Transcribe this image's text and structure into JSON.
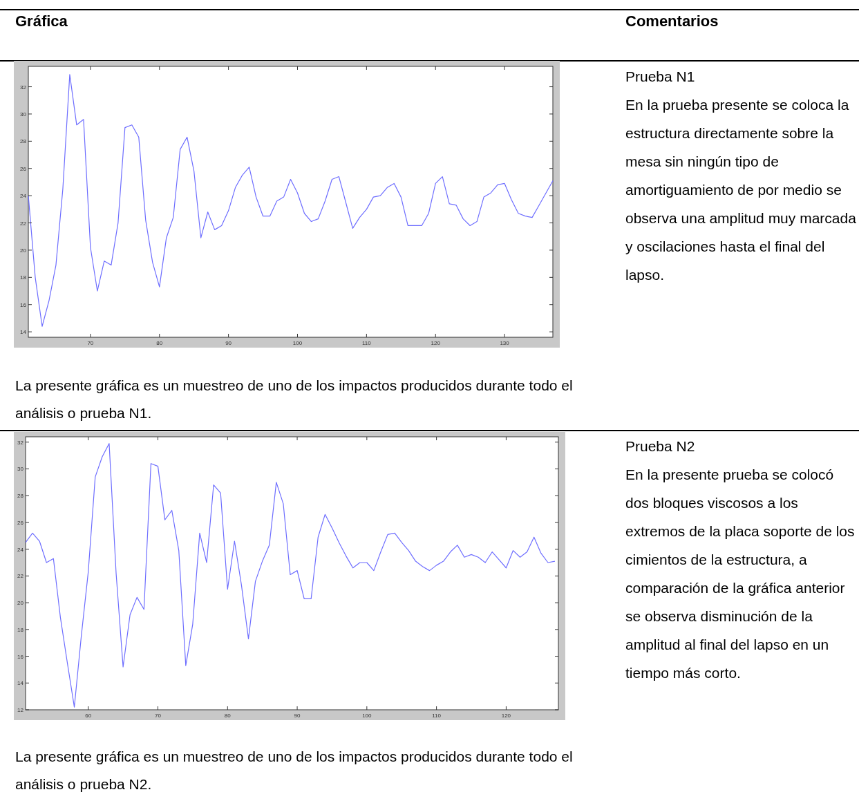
{
  "chart_data": [
    {
      "type": "line",
      "x": [
        61,
        62,
        63,
        64,
        65,
        66,
        67,
        68,
        69,
        70,
        71,
        72,
        73,
        74,
        75,
        76,
        77,
        78,
        79,
        80,
        81,
        82,
        83,
        84,
        85,
        86,
        87,
        88,
        89,
        90,
        91,
        92,
        93,
        94,
        95,
        96,
        97,
        98,
        99,
        100,
        101,
        102,
        103,
        104,
        105,
        106,
        107,
        108,
        109,
        110,
        111,
        112,
        113,
        114,
        115,
        116,
        117,
        118,
        119,
        120,
        121,
        122,
        123,
        124,
        125,
        126,
        127,
        128,
        129,
        130,
        131,
        132,
        133,
        134,
        135,
        136,
        137
      ],
      "series": [
        {
          "color": "#6e6eff",
          "values": [
            24.0,
            18.0,
            14.4,
            16.3,
            18.9,
            24.5,
            32.9,
            29.2,
            29.6,
            20.2,
            17.0,
            19.2,
            18.9,
            22.0,
            29.0,
            29.2,
            28.3,
            22.2,
            19.1,
            17.3,
            20.9,
            22.4,
            27.4,
            28.3,
            25.8,
            20.9,
            22.8,
            21.5,
            21.8,
            22.9,
            24.6,
            25.5,
            26.1,
            23.9,
            22.5,
            22.5,
            23.6,
            23.9,
            25.2,
            24.2,
            22.7,
            22.1,
            22.3,
            23.6,
            25.2,
            25.4,
            23.5,
            21.6,
            22.4,
            23.0,
            23.9,
            24.0,
            24.6,
            24.9,
            23.9,
            21.8,
            21.8,
            21.8,
            22.7,
            24.9,
            25.4,
            23.4,
            23.3,
            22.3,
            21.8,
            22.1,
            23.9,
            24.2,
            24.8,
            24.9,
            23.7,
            22.7,
            22.5,
            22.4,
            23.3,
            24.2,
            25.1
          ]
        }
      ],
      "xlim": [
        61,
        137
      ],
      "ylim": [
        13.6,
        33.5
      ],
      "xticks": [
        70,
        80,
        90,
        100,
        110,
        120,
        130
      ],
      "yticks": [
        14,
        16,
        18,
        20,
        22,
        24,
        26,
        28,
        30,
        32
      ],
      "grid": false,
      "marker": "none",
      "line_style": "solid",
      "annotations": [
        "Gráfica",
        "Comentarios",
        "Prueba N1",
        "En la prueba presente se coloca la estructura directamente sobre la mesa sin ningún tipo de amortiguamiento de por medio se observa una amplitud muy marcada y oscilaciones hasta el final del lapso.",
        "La presente gráfica es un muestreo de uno de los impactos producidos durante todo el análisis o prueba N1."
      ]
    },
    {
      "type": "line",
      "x": [
        51,
        52,
        53,
        54,
        55,
        56,
        57,
        58,
        59,
        60,
        61,
        62,
        63,
        64,
        65,
        66,
        67,
        68,
        69,
        70,
        71,
        72,
        73,
        74,
        75,
        76,
        77,
        78,
        79,
        80,
        81,
        82,
        83,
        84,
        85,
        86,
        87,
        88,
        89,
        90,
        91,
        92,
        93,
        94,
        95,
        96,
        97,
        98,
        99,
        100,
        101,
        102,
        103,
        104,
        105,
        106,
        107,
        108,
        109,
        110,
        111,
        112,
        113,
        114,
        115,
        116,
        117,
        118,
        119,
        120,
        121,
        122,
        123,
        124,
        125,
        126,
        127
      ],
      "series": [
        {
          "color": "#6e6eff",
          "values": [
            24.5,
            25.2,
            24.6,
            23.0,
            23.3,
            18.9,
            15.5,
            12.2,
            17.5,
            22.3,
            29.4,
            30.9,
            31.9,
            22.2,
            15.2,
            19.1,
            20.4,
            19.5,
            30.4,
            30.2,
            26.2,
            26.9,
            23.9,
            15.3,
            18.4,
            25.2,
            23.0,
            28.8,
            28.2,
            21.0,
            24.6,
            21.3,
            17.3,
            21.6,
            23.1,
            24.3,
            29.0,
            27.4,
            22.1,
            22.4,
            20.3,
            20.3,
            24.9,
            26.6,
            25.6,
            24.5,
            23.5,
            22.6,
            23.0,
            23.0,
            22.4,
            23.8,
            25.1,
            25.2,
            24.5,
            23.9,
            23.1,
            22.7,
            22.4,
            22.8,
            23.1,
            23.8,
            24.3,
            23.4,
            23.6,
            23.4,
            23.0,
            23.8,
            23.2,
            22.6,
            23.9,
            23.4,
            23.8,
            24.9,
            23.7,
            23.0,
            23.1
          ]
        }
      ],
      "xlim": [
        51,
        127.5
      ],
      "ylim": [
        12,
        32.4
      ],
      "xticks": [
        60,
        70,
        80,
        90,
        100,
        110,
        120
      ],
      "yticks": [
        12,
        14,
        16,
        18,
        20,
        22,
        24,
        26,
        28,
        30,
        32
      ],
      "grid": false,
      "marker": "none",
      "line_style": "solid",
      "annotations": [
        "Prueba N2",
        "En la presente prueba se colocó dos bloques viscosos a los extremos de la placa soporte de los cimientos de la estructura, a comparación de la gráfica anterior se observa disminución de la amplitud al final del lapso en un tiempo más corto.",
        "La presente gráfica es un muestreo de uno de los impactos producidos durante todo el análisis o prueba N2."
      ]
    }
  ]
}
